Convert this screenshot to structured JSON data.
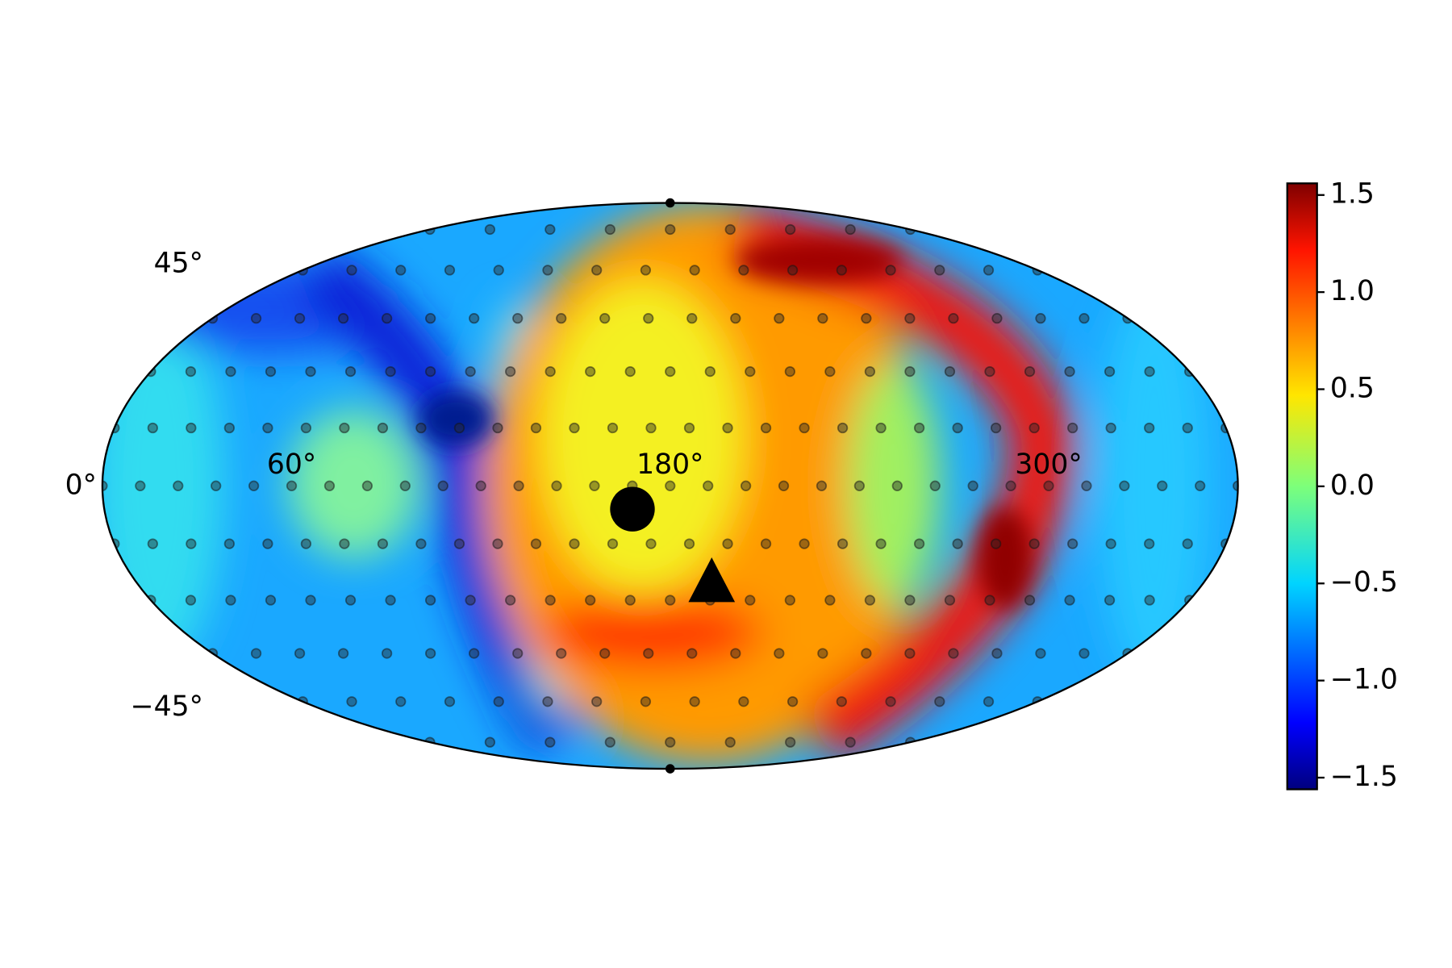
{
  "chart_data": {
    "type": "mollweide",
    "xlim": [
      0,
      360
    ],
    "ylim": [
      -90,
      90
    ],
    "xticks": [
      {
        "value": 0,
        "label": "0°"
      },
      {
        "value": 60,
        "label": "60°"
      },
      {
        "value": 180,
        "label": "180°"
      },
      {
        "value": 300,
        "label": "300°"
      }
    ],
    "yticks": [
      {
        "value": 45,
        "label": "45°"
      },
      {
        "value": -45,
        "label": "−45°"
      }
    ],
    "markers": [
      {
        "marker": "circle",
        "x": 168,
        "y": -6
      },
      {
        "marker": "triangle",
        "x": 194,
        "y": -25
      }
    ],
    "colorbar": {
      "colormap": "jet",
      "lim": [
        -1.56,
        1.56
      ],
      "ticks": [
        {
          "value": -1.5,
          "label": "−1.5"
        },
        {
          "value": -1.0,
          "label": "−1.0"
        },
        {
          "value": -0.5,
          "label": "−0.5"
        },
        {
          "value": 0,
          "label": "0.0"
        },
        0.5,
        {
          "value": 1.0,
          "label": "1.0"
        },
        1.5
      ]
    }
  }
}
